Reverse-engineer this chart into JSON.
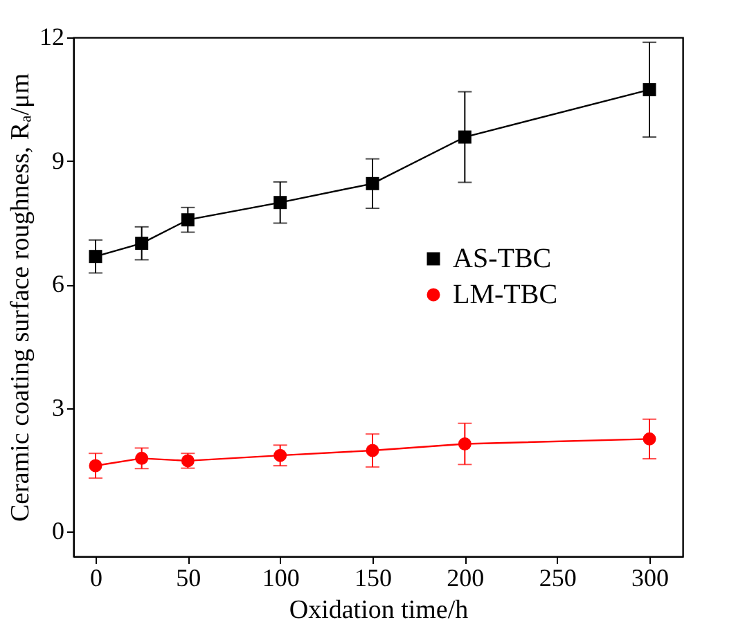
{
  "chart_data": {
    "type": "line",
    "xlabel": "Oxidation time/h",
    "ylabel": "Ceramic coating surface roughness, Rₐ/μm",
    "x": [
      0,
      25,
      50,
      100,
      150,
      200,
      300
    ],
    "xlim": [
      -12,
      318
    ],
    "xticks": [
      0,
      50,
      100,
      150,
      200,
      250,
      300
    ],
    "ylim": [
      -0.6,
      12
    ],
    "yticks": [
      0,
      3,
      6,
      9,
      12
    ],
    "line_style": "solid",
    "grid": false,
    "legend": "right",
    "series": [
      {
        "name": "AS-TBC",
        "color": "#000000",
        "marker": "square",
        "values": [
          6.68,
          7.0,
          7.57,
          7.99,
          8.45,
          9.58,
          10.73
        ],
        "errors": [
          0.4,
          0.4,
          0.3,
          0.5,
          0.6,
          1.1,
          1.15
        ]
      },
      {
        "name": "LM-TBC",
        "color": "#ff0000",
        "marker": "circle",
        "values": [
          1.6,
          1.78,
          1.72,
          1.85,
          1.97,
          2.13,
          2.25
        ],
        "errors": [
          0.3,
          0.25,
          0.18,
          0.25,
          0.4,
          0.5,
          0.48
        ]
      }
    ]
  }
}
